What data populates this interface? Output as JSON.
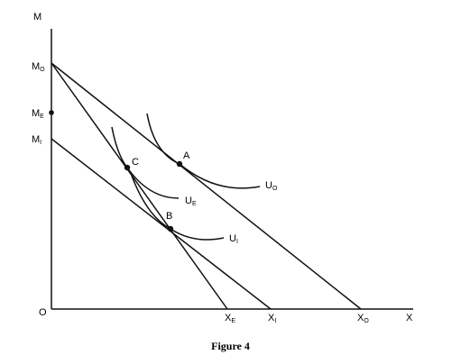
{
  "axes": {
    "y_label": "M",
    "x_label": "X",
    "origin_label": "O"
  },
  "y_ticks": [
    {
      "main": "M",
      "sub": "O"
    },
    {
      "main": "M",
      "sub": "E"
    },
    {
      "main": "M",
      "sub": "I"
    }
  ],
  "x_ticks": [
    {
      "main": "X",
      "sub": "E"
    },
    {
      "main": "X",
      "sub": "I"
    },
    {
      "main": "X",
      "sub": "O"
    }
  ],
  "points": {
    "a": "A",
    "b": "B",
    "c": "C"
  },
  "curves": {
    "uo": {
      "main": "U",
      "sub": "O"
    },
    "ue": {
      "main": "U",
      "sub": "E"
    },
    "ui": {
      "main": "U",
      "sub": "I"
    }
  },
  "caption": "Figure 4"
}
